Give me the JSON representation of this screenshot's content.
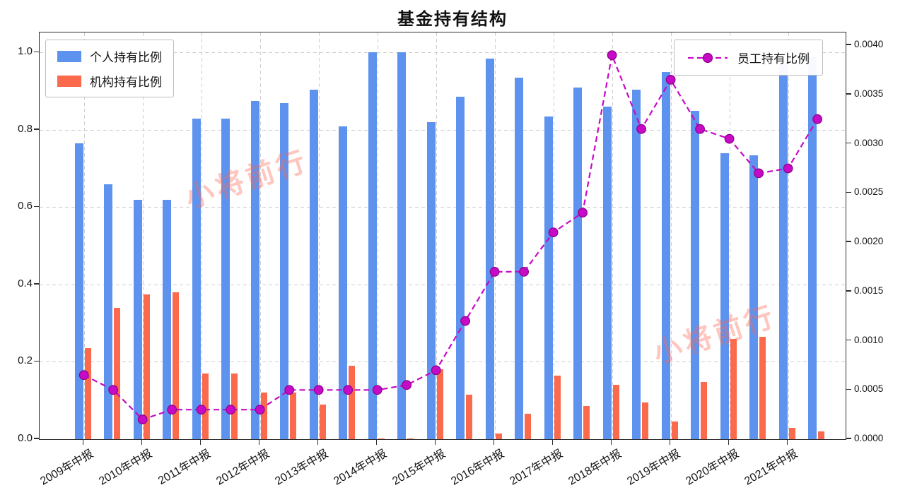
{
  "title": "基金持有结构",
  "watermark": "小将前行",
  "watermark_color": "rgba(252,106,86,0.38)",
  "chart_data": {
    "type": "bar+line",
    "title": "基金持有结构",
    "n_groups": 26,
    "grid": true,
    "legend_position": {
      "bars": "upper-left",
      "line": "upper-right"
    },
    "x_tick_indices": [
      0,
      2,
      4,
      6,
      8,
      10,
      12,
      14,
      16,
      18,
      20,
      22,
      24
    ],
    "x_tick_labels": [
      "2009年中报",
      "2010年中报",
      "2011年中报",
      "2012年中报",
      "2013年中报",
      "2014年中报",
      "2015年中报",
      "2016年中报",
      "2017年中报",
      "2018年中报",
      "2019年中报",
      "2020年中报",
      "2021年中报"
    ],
    "series": [
      {
        "name": "个人持有比例",
        "type": "bar",
        "axis": "left",
        "color": "#5D92EE",
        "values": [
          0.765,
          0.66,
          0.62,
          0.62,
          0.83,
          0.83,
          0.875,
          0.87,
          0.905,
          0.81,
          1.0,
          1.0,
          0.82,
          0.885,
          0.985,
          0.935,
          0.835,
          0.91,
          0.86,
          0.905,
          0.95,
          0.85,
          0.74,
          0.735,
          0.97,
          0.99
        ]
      },
      {
        "name": "机构持有比例",
        "type": "bar",
        "axis": "left",
        "color": "#FB6A4C",
        "values": [
          0.235,
          0.34,
          0.375,
          0.38,
          0.17,
          0.17,
          0.12,
          0.12,
          0.09,
          0.19,
          0.002,
          0.002,
          0.18,
          0.115,
          0.015,
          0.065,
          0.165,
          0.085,
          0.14,
          0.095,
          0.045,
          0.148,
          0.26,
          0.265,
          0.03,
          0.02
        ]
      },
      {
        "name": "员工持有比例",
        "type": "line",
        "axis": "right",
        "color": "#C60AC6",
        "marker_edge": "#8B008B",
        "values": [
          0.00065,
          0.0005,
          0.0002,
          0.0003,
          0.0003,
          0.0003,
          0.0003,
          0.0005,
          0.0005,
          0.0005,
          0.0005,
          0.00055,
          0.0007,
          0.0012,
          0.0017,
          0.0017,
          0.0021,
          0.0023,
          0.0039,
          0.00315,
          0.00365,
          0.00315,
          0.00305,
          0.0027,
          0.00275,
          0.00325
        ]
      }
    ],
    "left_axis": {
      "ticks": [
        0,
        0.2,
        0.4,
        0.6,
        0.8,
        1.0
      ],
      "tick_labels": [
        "0.0",
        "0.2",
        "0.4",
        "0.6",
        "0.8",
        "1.0"
      ],
      "max": 1.052
    },
    "right_axis": {
      "ticks": [
        0,
        0.0005,
        0.001,
        0.0015,
        0.002,
        0.0025,
        0.003,
        0.0035,
        0.004
      ],
      "tick_labels": [
        "0.0000",
        "0.0005",
        "0.0010",
        "0.0015",
        "0.0020",
        "0.0025",
        "0.0030",
        "0.0035",
        "0.0040"
      ],
      "max": 0.00413
    }
  }
}
